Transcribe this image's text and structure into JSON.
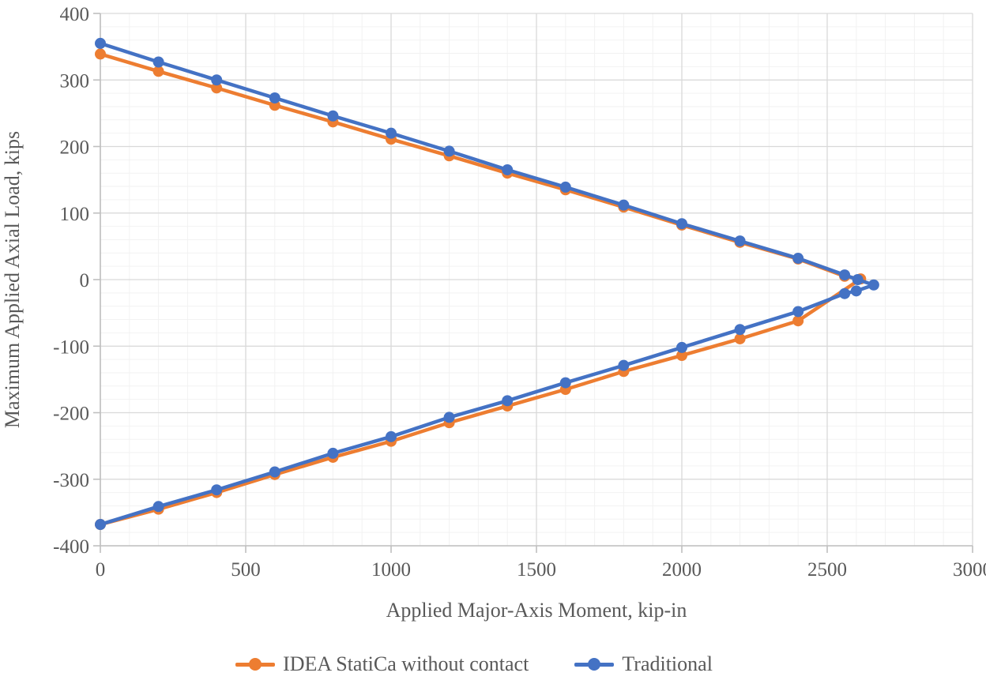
{
  "chart_data": {
    "type": "line",
    "title": "",
    "xlabel": "Applied Major-Axis Moment, kip-in",
    "ylabel": "Maximum Applied Axial Load, kips",
    "xlim": [
      0,
      3000
    ],
    "ylim": [
      -400,
      400
    ],
    "x_major_step": 500,
    "x_minor_step": 100,
    "y_major_step": 100,
    "y_minor_step": 20,
    "x_ticks": [
      0,
      500,
      1000,
      1500,
      2000,
      2500,
      3000
    ],
    "y_ticks": [
      400,
      300,
      200,
      100,
      0,
      -100,
      -200,
      -300,
      -400
    ],
    "grid": "major-and-minor",
    "legend_position": "bottom-center",
    "style": {
      "minor_grid_color": "#f2f2f2",
      "major_grid_color": "#d9d9d9",
      "axis_color": "#bfbfbf",
      "text_color": "#595959",
      "background": "#ffffff"
    },
    "series": [
      {
        "name": "IDEA StatiCa without contact",
        "color": "#ED7D31",
        "points": [
          [
            0,
            339
          ],
          [
            200,
            313
          ],
          [
            400,
            288
          ],
          [
            600,
            262
          ],
          [
            800,
            237
          ],
          [
            1000,
            211
          ],
          [
            1200,
            186
          ],
          [
            1400,
            160
          ],
          [
            1600,
            135
          ],
          [
            1800,
            109
          ],
          [
            2000,
            82
          ],
          [
            2200,
            56
          ],
          [
            2400,
            31
          ],
          [
            2560,
            5
          ],
          [
            2615,
            1
          ],
          [
            2400,
            -62
          ],
          [
            2200,
            -89
          ],
          [
            2000,
            -114
          ],
          [
            1800,
            -138
          ],
          [
            1600,
            -165
          ],
          [
            1400,
            -190
          ],
          [
            1200,
            -215
          ],
          [
            1000,
            -243
          ],
          [
            800,
            -267
          ],
          [
            600,
            -293
          ],
          [
            400,
            -320
          ],
          [
            200,
            -345
          ],
          [
            0,
            -368
          ]
        ]
      },
      {
        "name": "Traditional",
        "color": "#4472C4",
        "points": [
          [
            0,
            355
          ],
          [
            200,
            327
          ],
          [
            400,
            300
          ],
          [
            600,
            273
          ],
          [
            800,
            246
          ],
          [
            1000,
            220
          ],
          [
            1200,
            193
          ],
          [
            1400,
            165
          ],
          [
            1600,
            139
          ],
          [
            1800,
            112
          ],
          [
            2000,
            84
          ],
          [
            2200,
            58
          ],
          [
            2400,
            32
          ],
          [
            2560,
            7
          ],
          [
            2605,
            0
          ],
          [
            2660,
            -8
          ],
          [
            2600,
            -17
          ],
          [
            2560,
            -21
          ],
          [
            2400,
            -48
          ],
          [
            2200,
            -75
          ],
          [
            2000,
            -102
          ],
          [
            1800,
            -129
          ],
          [
            1600,
            -155
          ],
          [
            1400,
            -182
          ],
          [
            1200,
            -207
          ],
          [
            1000,
            -236
          ],
          [
            800,
            -261
          ],
          [
            600,
            -289
          ],
          [
            400,
            -316
          ],
          [
            200,
            -341
          ],
          [
            0,
            -368
          ]
        ]
      }
    ]
  }
}
